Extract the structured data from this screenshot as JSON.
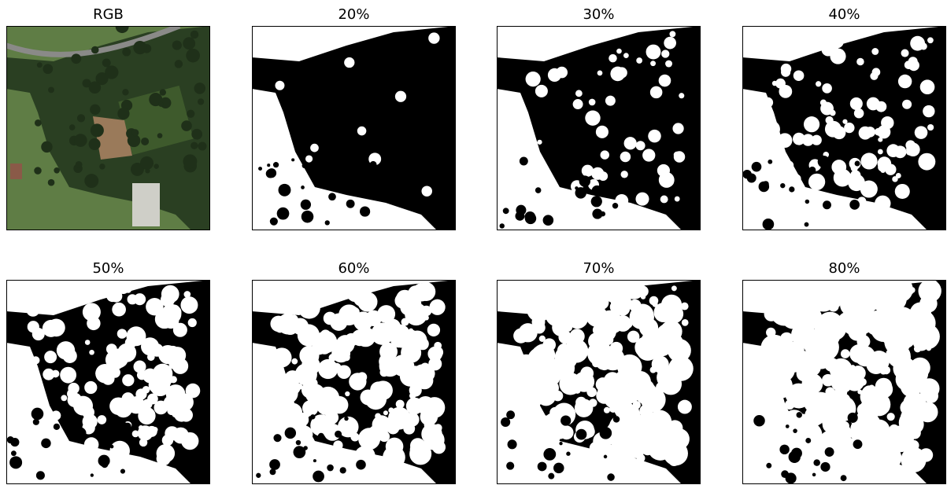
{
  "panels": [
    {
      "title": "RGB"
    },
    {
      "title": "20%"
    },
    {
      "title": "30%"
    },
    {
      "title": "40%"
    },
    {
      "title": "50%"
    },
    {
      "title": "60%"
    },
    {
      "title": "70%"
    },
    {
      "title": "80%"
    }
  ]
}
